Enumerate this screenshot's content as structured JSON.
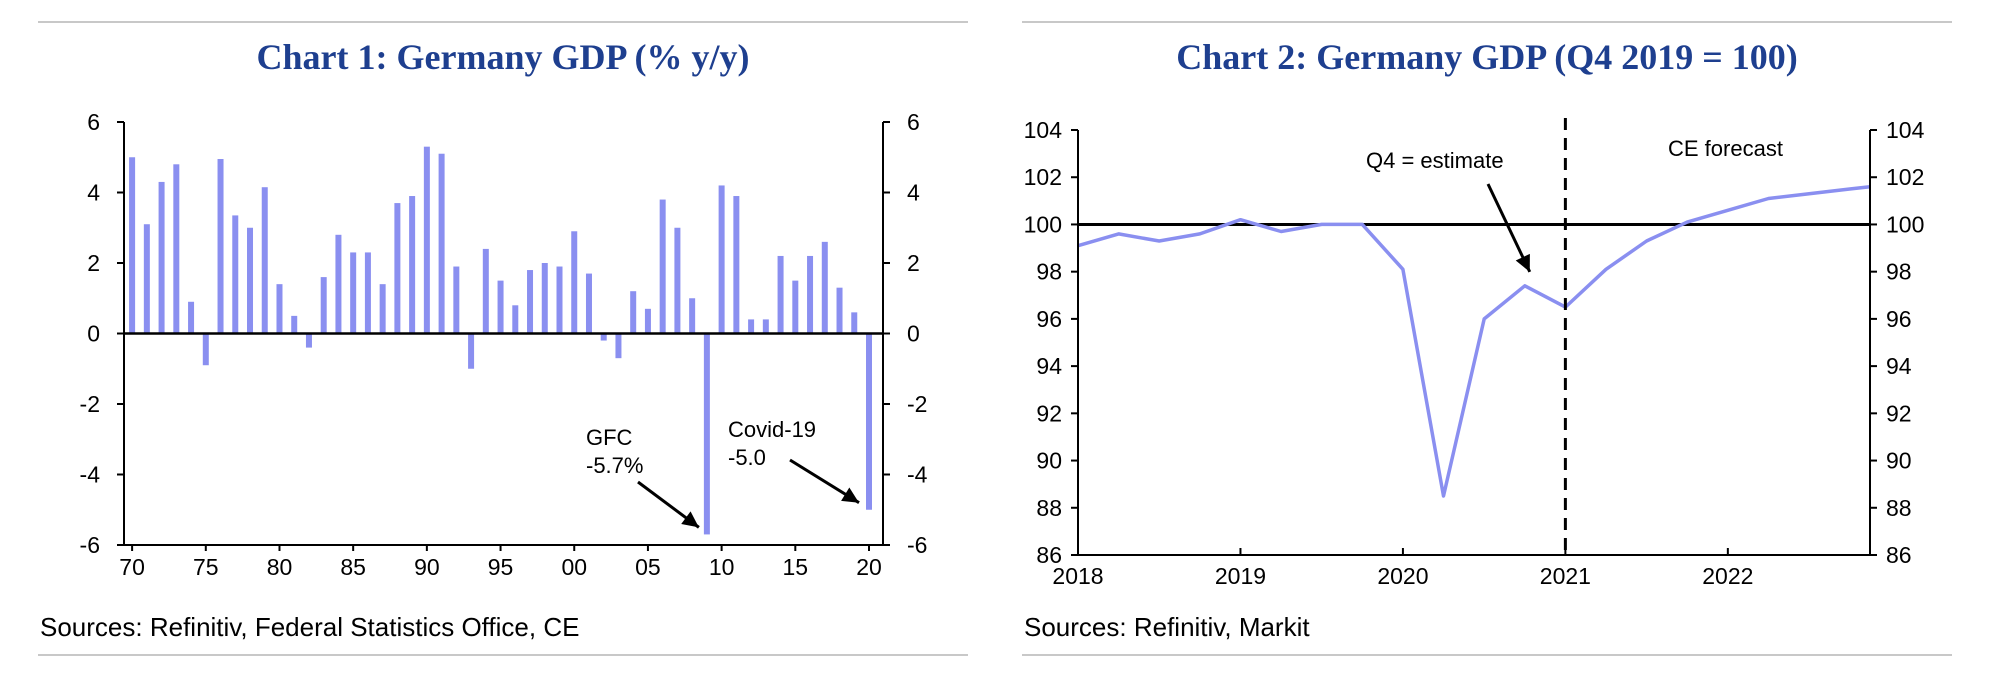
{
  "chart_data": [
    {
      "type": "bar",
      "title": "Chart 1: Germany GDP (% y/y)",
      "source": "Sources: Refinitiv, Federal Statistics Office, CE",
      "xlabel": "",
      "ylabel": "",
      "ylim": [
        -6,
        6
      ],
      "yticks": [
        "6",
        "4",
        "2",
        "0",
        "-2",
        "-4",
        "-6"
      ],
      "ytick_values": [
        6,
        4,
        2,
        0,
        -2,
        -4,
        -6
      ],
      "xtick_labels": [
        "70",
        "75",
        "80",
        "85",
        "90",
        "95",
        "00",
        "05",
        "10",
        "15",
        "20"
      ],
      "xtick_years": [
        1970,
        1975,
        1980,
        1985,
        1990,
        1995,
        2000,
        2005,
        2010,
        2015,
        2020
      ],
      "years": [
        1970,
        1971,
        1972,
        1973,
        1974,
        1975,
        1976,
        1977,
        1978,
        1979,
        1980,
        1981,
        1982,
        1983,
        1984,
        1985,
        1986,
        1987,
        1988,
        1989,
        1990,
        1991,
        1992,
        1993,
        1994,
        1995,
        1996,
        1997,
        1998,
        1999,
        2000,
        2001,
        2002,
        2003,
        2004,
        2005,
        2006,
        2007,
        2008,
        2009,
        2010,
        2011,
        2012,
        2013,
        2014,
        2015,
        2016,
        2017,
        2018,
        2019,
        2020
      ],
      "values": [
        5.0,
        3.1,
        4.3,
        4.8,
        0.9,
        -0.9,
        4.95,
        3.35,
        3.0,
        4.15,
        1.4,
        0.5,
        -0.4,
        1.6,
        2.8,
        2.3,
        2.3,
        1.4,
        3.7,
        3.9,
        5.3,
        5.1,
        1.9,
        -1.0,
        2.4,
        1.5,
        0.8,
        1.8,
        2.0,
        1.9,
        2.9,
        1.7,
        -0.2,
        -0.7,
        1.2,
        0.7,
        3.8,
        3.0,
        1.0,
        -5.7,
        4.2,
        3.9,
        0.4,
        0.4,
        2.2,
        1.5,
        2.2,
        2.6,
        1.3,
        0.6,
        -5.0
      ],
      "color": "#8a8ff0",
      "annotations": [
        {
          "line1": "GFC",
          "line2": "-5.7%",
          "year": 2009
        },
        {
          "line1": "Covid-19",
          "line2": "-5.0",
          "year": 2020
        }
      ]
    },
    {
      "type": "line",
      "title": "Chart 2: Germany GDP (Q4 2019 = 100)",
      "source": "Sources: Refinitiv, Markit",
      "xlabel": "",
      "ylabel": "",
      "ylim": [
        86,
        104
      ],
      "xlim": [
        2018.0,
        2022.875
      ],
      "yticks": [
        "104",
        "102",
        "100",
        "98",
        "96",
        "94",
        "92",
        "90",
        "88",
        "86"
      ],
      "ytick_values": [
        104,
        102,
        100,
        98,
        96,
        94,
        92,
        90,
        88,
        86
      ],
      "xtick_labels": [
        "2018",
        "2019",
        "2020",
        "2021",
        "2022"
      ],
      "xtick_values": [
        2018,
        2019,
        2020,
        2021,
        2022
      ],
      "x": [
        2018.0,
        2018.25,
        2018.5,
        2018.75,
        2019.0,
        2019.25,
        2019.5,
        2019.75,
        2020.0,
        2020.25,
        2020.5,
        2020.75,
        2021.0,
        2021.25,
        2021.5,
        2021.75,
        2022.0,
        2022.25,
        2022.5,
        2022.75,
        2022.875
      ],
      "y": [
        99.1,
        99.6,
        99.3,
        99.6,
        100.2,
        99.7,
        100.0,
        100.0,
        98.1,
        88.5,
        96.0,
        97.4,
        96.5,
        98.1,
        99.3,
        100.1,
        100.6,
        101.1,
        101.3,
        101.5,
        101.6
      ],
      "reference_line": 100,
      "forecast_start": 2021.0,
      "color": "#8a8ff0",
      "annotations": [
        {
          "text": "Q4 = estimate"
        },
        {
          "text": "CE forecast"
        }
      ]
    }
  ]
}
